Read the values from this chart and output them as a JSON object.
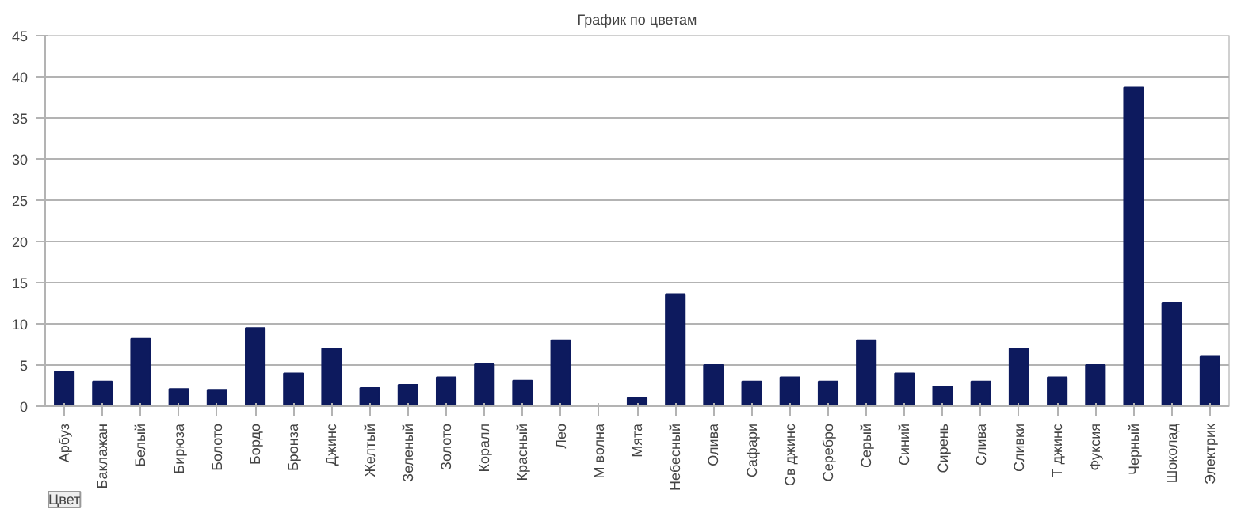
{
  "chart_data": {
    "type": "bar",
    "title": "График по цветам",
    "categories": [
      "Арбуз",
      "Баклажан",
      "Белый",
      "Бирюза",
      "Болото",
      "Бордо",
      "Бронза",
      "Джинс",
      "Желтый",
      "Зеленый",
      "Золото",
      "Коралл",
      "Красный",
      "Лео",
      "М волна",
      "Мята",
      "Небесный",
      "Олива",
      "Сафари",
      "Св джинс",
      "Серебро",
      "Серый",
      "Синий",
      "Сирень",
      "Слива",
      "Сливки",
      "Т джинс",
      "Фуксия",
      "Черный",
      "Шоколад",
      "Электрик"
    ],
    "values": [
      4.2,
      3,
      8.2,
      2.1,
      2,
      9.5,
      4,
      7,
      2.2,
      2.6,
      3.5,
      5.1,
      3.1,
      8,
      0,
      1,
      13.6,
      5,
      3,
      3.5,
      3,
      8,
      4,
      2.4,
      3,
      7,
      3.5,
      5,
      38.7,
      12.5,
      6
    ],
    "color": "#0d1a5e",
    "ylim": [
      0,
      45
    ],
    "yticks": [
      0,
      5,
      10,
      15,
      20,
      25,
      30,
      35,
      40,
      45
    ],
    "grid": "y",
    "annotations": [
      "Цвет"
    ]
  }
}
